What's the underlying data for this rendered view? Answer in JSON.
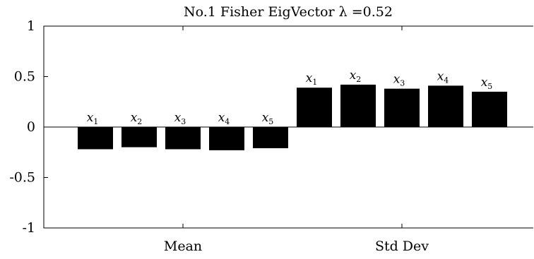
{
  "chart_data": {
    "type": "bar",
    "title": "No.1 Fisher EigVector λ =0.52",
    "categories": [
      "Mean",
      "Std Dev"
    ],
    "ylim": [
      -1,
      1
    ],
    "yticks": [
      1,
      0.5,
      0,
      -0.5,
      -1
    ],
    "ytick_labels": [
      "1",
      "0.5",
      "0",
      "-0.5",
      "-1"
    ],
    "grid": false,
    "groups": [
      {
        "category": "Mean",
        "bars": [
          {
            "label": "x",
            "sub": "1",
            "value": -0.22
          },
          {
            "label": "x",
            "sub": "2",
            "value": -0.2
          },
          {
            "label": "x",
            "sub": "3",
            "value": -0.22
          },
          {
            "label": "x",
            "sub": "4",
            "value": -0.23
          },
          {
            "label": "x",
            "sub": "5",
            "value": -0.21
          }
        ]
      },
      {
        "category": "Std Dev",
        "bars": [
          {
            "label": "x",
            "sub": "1",
            "value": 0.39
          },
          {
            "label": "x",
            "sub": "2",
            "value": 0.42
          },
          {
            "label": "x",
            "sub": "3",
            "value": 0.38
          },
          {
            "label": "x",
            "sub": "4",
            "value": 0.41
          },
          {
            "label": "x",
            "sub": "5",
            "value": 0.35
          }
        ]
      }
    ]
  }
}
